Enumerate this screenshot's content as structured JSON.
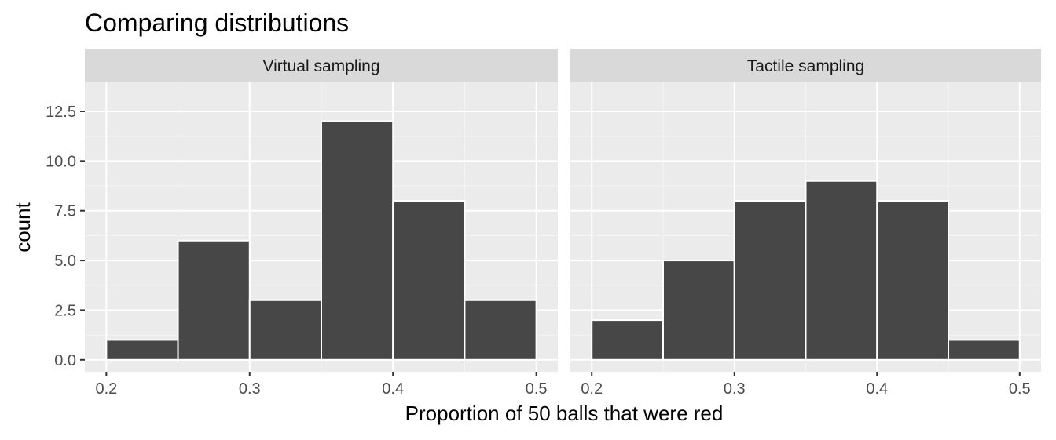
{
  "chart_data": {
    "type": "bar",
    "title": "Comparing distributions",
    "xlabel": "Proportion of 50 balls that were red",
    "ylabel": "count",
    "xlim": [
      0.185,
      0.515
    ],
    "ylim": [
      -0.6,
      14.0
    ],
    "x_ticks": [
      0.2,
      0.3,
      0.4,
      0.5
    ],
    "x_tick_labels": [
      "0.2",
      "0.3",
      "0.4",
      "0.5"
    ],
    "y_ticks": [
      0.0,
      2.5,
      5.0,
      7.5,
      10.0,
      12.5
    ],
    "y_tick_labels": [
      "0.0",
      "2.5",
      "5.0",
      "7.5",
      "10.0",
      "12.5"
    ],
    "grid": true,
    "bin_edges": [
      0.2,
      0.25,
      0.3,
      0.35,
      0.4,
      0.45,
      0.5
    ],
    "facets": [
      {
        "name": "Virtual sampling",
        "values": [
          1,
          6,
          3,
          12,
          8,
          3
        ]
      },
      {
        "name": "Tactile sampling",
        "values": [
          2,
          5,
          8,
          9,
          8,
          1
        ]
      }
    ],
    "colors": {
      "bar_fill": "#474747",
      "bar_stroke": "#ffffff",
      "panel_bg": "#ebebeb",
      "strip_bg": "#d9d9d9",
      "grid_major": "#ffffff",
      "axis_text": "#4d4d4d",
      "title_text": "#000000"
    }
  }
}
